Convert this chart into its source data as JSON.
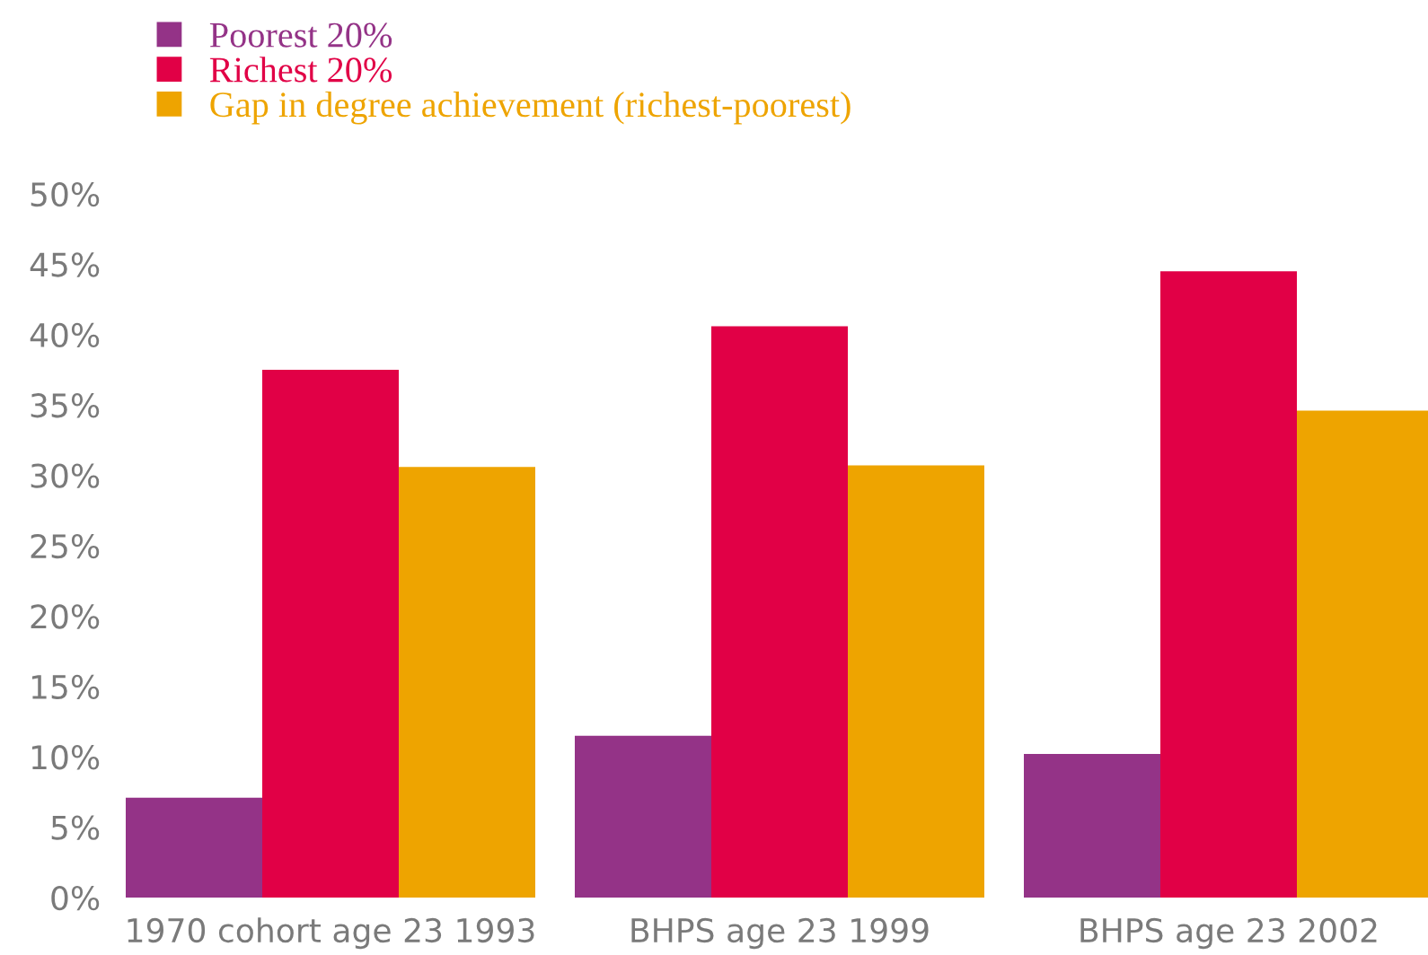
{
  "chart_data": {
    "type": "bar",
    "categories": [
      "1970 cohort age 23 1993",
      "BHPS age 23 1999",
      "BHPS age 23 2002"
    ],
    "series": [
      {
        "name": "Poorest 20%",
        "color": "#943387",
        "values": [
          7.1,
          11.5,
          10.2
        ]
      },
      {
        "name": "Richest 20%",
        "color": "#e10046",
        "values": [
          37.5,
          40.6,
          44.5
        ]
      },
      {
        "name": "Gap in degree achievement (richest-poorest)",
        "color": "#eea400",
        "values": [
          30.6,
          30.7,
          34.6
        ]
      }
    ],
    "ylim": [
      0,
      50
    ],
    "yticks": [
      {
        "value": 0,
        "label": "0%"
      },
      {
        "value": 5,
        "label": "5%"
      },
      {
        "value": 10,
        "label": "10%"
      },
      {
        "value": 15,
        "label": "15%"
      },
      {
        "value": 20,
        "label": "20%"
      },
      {
        "value": 25,
        "label": "25%"
      },
      {
        "value": 30,
        "label": "30%"
      },
      {
        "value": 35,
        "label": "35%"
      },
      {
        "value": 40,
        "label": "40%"
      },
      {
        "value": 45,
        "label": "45%"
      },
      {
        "value": 50,
        "label": "50%"
      }
    ],
    "grid": false,
    "legend": "top left"
  }
}
